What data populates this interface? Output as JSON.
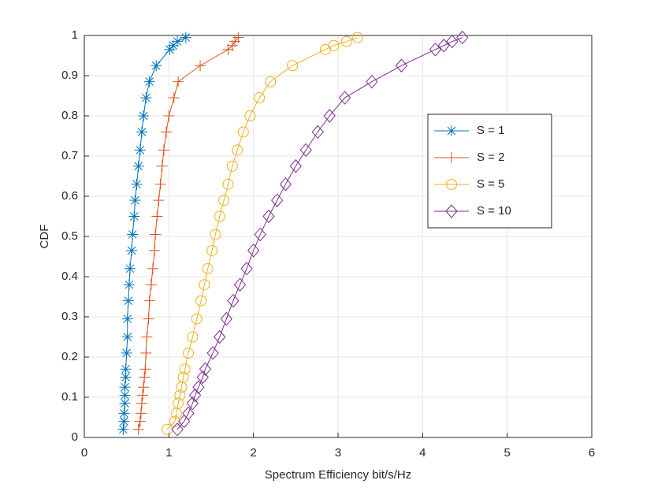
{
  "chart_data": {
    "type": "line",
    "xlabel": "Spectrum Efficiency bit/s/Hz",
    "ylabel": "CDF",
    "xlim": [
      0,
      6
    ],
    "ylim": [
      0,
      1
    ],
    "xticks": [
      0,
      1,
      2,
      3,
      4,
      5,
      6
    ],
    "yticks": [
      0,
      0.1,
      0.2,
      0.3,
      0.4,
      0.5,
      0.6,
      0.7,
      0.8,
      0.9,
      1
    ],
    "grid": true,
    "legend_position": "east",
    "series": [
      {
        "name": "S = 1",
        "color": "#0072bd",
        "marker": "asterisk",
        "x": [
          0.46,
          0.47,
          0.47,
          0.48,
          0.48,
          0.48,
          0.49,
          0.49,
          0.5,
          0.51,
          0.51,
          0.52,
          0.53,
          0.54,
          0.56,
          0.57,
          0.59,
          0.6,
          0.62,
          0.64,
          0.66,
          0.68,
          0.7,
          0.73,
          0.77,
          0.85,
          1.01,
          1.05,
          1.1,
          1.2
        ],
        "values": [
          0.02,
          0.04,
          0.06,
          0.085,
          0.105,
          0.125,
          0.15,
          0.17,
          0.21,
          0.25,
          0.295,
          0.34,
          0.38,
          0.42,
          0.465,
          0.505,
          0.55,
          0.59,
          0.63,
          0.675,
          0.715,
          0.76,
          0.8,
          0.845,
          0.885,
          0.925,
          0.965,
          0.975,
          0.985,
          0.995
        ]
      },
      {
        "name": "S = 2",
        "color": "#d95319",
        "marker": "plus",
        "x": [
          0.64,
          0.66,
          0.67,
          0.68,
          0.69,
          0.7,
          0.71,
          0.72,
          0.73,
          0.74,
          0.76,
          0.77,
          0.79,
          0.81,
          0.83,
          0.84,
          0.86,
          0.88,
          0.9,
          0.92,
          0.94,
          0.97,
          1.0,
          1.06,
          1.11,
          1.37,
          1.7,
          1.75,
          1.78,
          1.82
        ],
        "values": [
          0.02,
          0.04,
          0.06,
          0.085,
          0.105,
          0.125,
          0.15,
          0.17,
          0.21,
          0.25,
          0.295,
          0.34,
          0.38,
          0.42,
          0.465,
          0.505,
          0.55,
          0.59,
          0.63,
          0.675,
          0.715,
          0.76,
          0.8,
          0.845,
          0.885,
          0.925,
          0.965,
          0.975,
          0.985,
          0.995
        ]
      },
      {
        "name": "S = 5",
        "color": "#edb120",
        "marker": "circle",
        "x": [
          0.98,
          1.07,
          1.09,
          1.11,
          1.13,
          1.15,
          1.17,
          1.19,
          1.23,
          1.28,
          1.33,
          1.38,
          1.42,
          1.46,
          1.51,
          1.55,
          1.6,
          1.65,
          1.7,
          1.75,
          1.81,
          1.88,
          1.96,
          2.07,
          2.2,
          2.46,
          2.85,
          2.95,
          3.1,
          3.23
        ],
        "values": [
          0.02,
          0.04,
          0.06,
          0.085,
          0.105,
          0.125,
          0.15,
          0.17,
          0.21,
          0.25,
          0.295,
          0.34,
          0.38,
          0.42,
          0.465,
          0.505,
          0.55,
          0.59,
          0.63,
          0.675,
          0.715,
          0.76,
          0.8,
          0.845,
          0.885,
          0.925,
          0.965,
          0.975,
          0.985,
          0.995
        ]
      },
      {
        "name": "S = 10",
        "color": "#7e2f8e",
        "marker": "diamond",
        "x": [
          1.1,
          1.18,
          1.23,
          1.28,
          1.31,
          1.35,
          1.4,
          1.43,
          1.52,
          1.6,
          1.68,
          1.76,
          1.84,
          1.92,
          2.0,
          2.08,
          2.18,
          2.28,
          2.38,
          2.5,
          2.62,
          2.76,
          2.9,
          3.08,
          3.4,
          3.75,
          4.15,
          4.25,
          4.35,
          4.47
        ],
        "values": [
          0.02,
          0.04,
          0.06,
          0.085,
          0.105,
          0.125,
          0.15,
          0.17,
          0.21,
          0.25,
          0.295,
          0.34,
          0.38,
          0.42,
          0.465,
          0.505,
          0.55,
          0.59,
          0.63,
          0.675,
          0.715,
          0.76,
          0.8,
          0.845,
          0.885,
          0.925,
          0.965,
          0.975,
          0.985,
          0.995
        ]
      }
    ]
  }
}
